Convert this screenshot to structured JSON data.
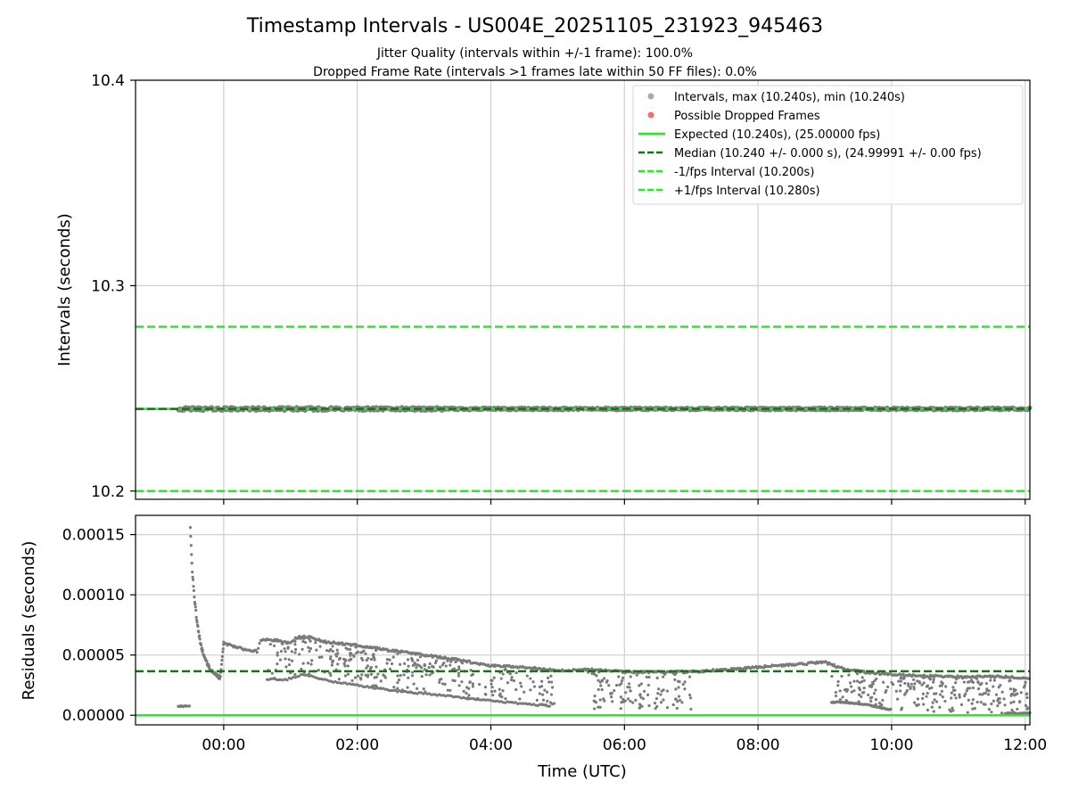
{
  "chart_data": [
    {
      "type": "scatter",
      "title": "Timestamp Intervals - US004E_20251105_231923_945463",
      "subtitle_lines": [
        "Jitter Quality (intervals within +/-1 frame): 100.0%",
        "Dropped Frame Rate (intervals >1 frames late within 50 FF files): 0.0%"
      ],
      "ylabel": "Intervals (seconds)",
      "ylim": [
        10.196,
        10.4
      ],
      "yticks": [
        10.2,
        10.3,
        10.4
      ],
      "ytick_labels": [
        "10.2",
        "10.3",
        "10.4"
      ],
      "xlim_hours": [
        -1.32,
        12.07
      ],
      "grid": true,
      "legend_placement": "top-right",
      "legend": [
        {
          "label": "Intervals, max (10.240s), min (10.240s)",
          "style": "marker",
          "color": "#aaaaaa"
        },
        {
          "label": "Possible Dropped Frames",
          "style": "marker",
          "color": "#f07070"
        },
        {
          "label": "Expected (10.240s), (25.00000 fps)",
          "style": "solid",
          "color": "#22ee22"
        },
        {
          "label": "Median (10.240 +/- 0.000 s), (24.99991 +/- 0.00 fps)",
          "style": "dashed",
          "color": "#117711"
        },
        {
          "label": "-1/fps Interval (10.200s)",
          "style": "dashed",
          "color": "#22ee22"
        },
        {
          "label": "+1/fps Interval (10.280s)",
          "style": "dashed",
          "color": "#22ee22"
        }
      ],
      "lines": {
        "expected": 10.24,
        "median": 10.24,
        "minus_interval": 10.2,
        "plus_interval": 10.28
      },
      "series": [
        {
          "name": "Intervals",
          "x_range_hours": [
            -0.68,
            12.07
          ],
          "y": 10.24,
          "color": "#808080"
        }
      ]
    },
    {
      "type": "scatter",
      "ylabel": "Residuals (seconds)",
      "xlabel": "Time (UTC)",
      "ylim": [
        -8e-06,
        0.000166
      ],
      "yticks": [
        0.0,
        5e-05,
        0.0001,
        0.00015
      ],
      "ytick_labels": [
        "0.00000",
        "0.00005",
        "0.00010",
        "0.00015"
      ],
      "xlim_hours": [
        -1.32,
        12.07
      ],
      "xticks_hours": [
        0,
        2,
        4,
        6,
        8,
        10,
        12
      ],
      "xtick_labels": [
        "00:00",
        "02:00",
        "04:00",
        "06:00",
        "08:00",
        "10:00",
        "12:00"
      ],
      "grid": true,
      "lines": {
        "expected": 0.0,
        "median": 3.65e-05
      },
      "series": [
        {
          "name": "Residuals",
          "color": "#808080",
          "x": [
            -0.68,
            -0.6,
            -0.52,
            -0.5,
            -0.48,
            -0.47,
            -0.46,
            -0.45,
            -0.44,
            -0.42,
            -0.4,
            -0.37,
            -0.34,
            -0.3,
            -0.25,
            -0.2,
            -0.15,
            -0.1,
            -0.05,
            0.0,
            0.1,
            0.3,
            0.5,
            0.55,
            0.7,
            1.0,
            1.1,
            1.3,
            1.5,
            2.0,
            2.5,
            3.0,
            3.5,
            4.0,
            4.5,
            5.0,
            5.5,
            6.0,
            7.0,
            8.0,
            8.5,
            9.0,
            9.3,
            9.7,
            9.95,
            10.3,
            11.0,
            11.7,
            12.07
          ],
          "y": [
            7.5e-06,
            7.5e-06,
            7.5e-06,
            0.000155,
            0.000132,
            0.00012,
            0.000113,
            0.000105,
            9.8e-05,
            8.8e-05,
            7.7e-05,
            6.7e-05,
            5.8e-05,
            5e-05,
            4.3e-05,
            3.8e-05,
            3.5e-05,
            3.3e-05,
            3.1e-05,
            6e-05,
            5.8e-05,
            5.5e-05,
            5.3e-05,
            6.2e-05,
            6.3e-05,
            6e-05,
            6.5e-05,
            6.5e-05,
            6.1e-05,
            5.8e-05,
            5.4e-05,
            5e-05,
            4.6e-05,
            4.1e-05,
            4e-05,
            3.7e-05,
            3.8e-05,
            3.6e-05,
            3.6e-05,
            4e-05,
            4.2e-05,
            4.4e-05,
            3.8e-05,
            3.5e-05,
            3.4e-05,
            3.3e-05,
            3.2e-05,
            3.2e-05,
            3.1e-05
          ]
        },
        {
          "name": "Lower residual scatter",
          "color": "#808080",
          "x": [
            0.7,
            0.9,
            1.2,
            1.6,
            2.0,
            2.6,
            3.2,
            3.8,
            4.4,
            5.0,
            5.6,
            6.2,
            7.0,
            9.2,
            9.6,
            9.95,
            10.4,
            11.0,
            11.6,
            12.0
          ],
          "y": [
            3e-05,
            2.9e-05,
            3.4e-05,
            2.8e-05,
            2.5e-05,
            2e-05,
            1.7e-05,
            1.3e-05,
            1e-05,
            7e-06,
            5e-06,
            4e-06,
            3e-06,
            1.1e-05,
            9e-06,
            5e-06,
            3e-06,
            2e-06,
            1e-06,
            1e-06
          ]
        }
      ]
    }
  ]
}
